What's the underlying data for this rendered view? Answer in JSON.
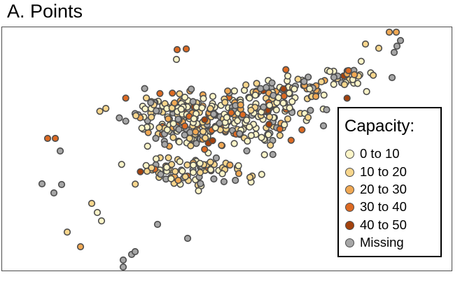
{
  "panel_title": "A. Points",
  "chart_data": {
    "type": "scatter",
    "title": "A. Points",
    "legend": {
      "title": "Capacity:",
      "placement": "bottom-right",
      "entries": [
        {
          "label": "0 to 10",
          "color": "#fdf5c8"
        },
        {
          "label": "10 to 20",
          "color": "#f8d68c"
        },
        {
          "label": "20 to 30",
          "color": "#f0a853"
        },
        {
          "label": "30 to 40",
          "color": "#dd6a22"
        },
        {
          "label": "40 to 50",
          "color": "#a4420d"
        },
        {
          "label": "Missing",
          "color": "#a6a6a6"
        }
      ]
    },
    "stroke_color": "#4d4d4d",
    "grid": false,
    "axes_visible": false
  }
}
